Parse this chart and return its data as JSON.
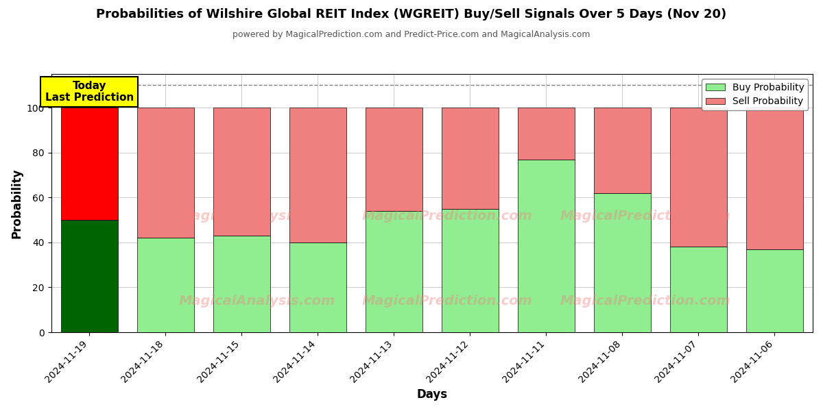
{
  "title": "Probabilities of Wilshire Global REIT Index (WGREIT) Buy/Sell Signals Over 5 Days (Nov 20)",
  "subtitle": "powered by MagicalPrediction.com and Predict-Price.com and MagicalAnalysis.com",
  "xlabel": "Days",
  "ylabel": "Probability",
  "categories": [
    "2024-11-19",
    "2024-11-18",
    "2024-11-15",
    "2024-11-14",
    "2024-11-13",
    "2024-11-12",
    "2024-11-11",
    "2024-11-08",
    "2024-11-07",
    "2024-11-06"
  ],
  "buy_values": [
    50,
    42,
    43,
    40,
    54,
    55,
    77,
    62,
    38,
    37
  ],
  "sell_values": [
    50,
    58,
    57,
    60,
    46,
    45,
    23,
    38,
    62,
    63
  ],
  "today_bar_buy_color": "#006400",
  "today_bar_sell_color": "#ff0000",
  "other_bar_buy_color": "#90ee90",
  "other_bar_sell_color": "#f08080",
  "annotation_text": "Today\nLast Prediction",
  "annotation_bg_color": "#ffff00",
  "legend_buy_color": "#90ee90",
  "legend_sell_color": "#f08080",
  "ylim": [
    0,
    115
  ],
  "yticks": [
    0,
    20,
    40,
    60,
    80,
    100
  ],
  "dashed_line_y": 110,
  "watermark_line1": "MagicalAnalysis.com",
  "watermark_line2": "MagicalPrediction.com",
  "watermark_line3": "MagicalPrediction.com",
  "background_color": "#ffffff",
  "grid_color": "#cccccc",
  "figsize": [
    12,
    6
  ],
  "dpi": 100,
  "bar_width": 0.75
}
